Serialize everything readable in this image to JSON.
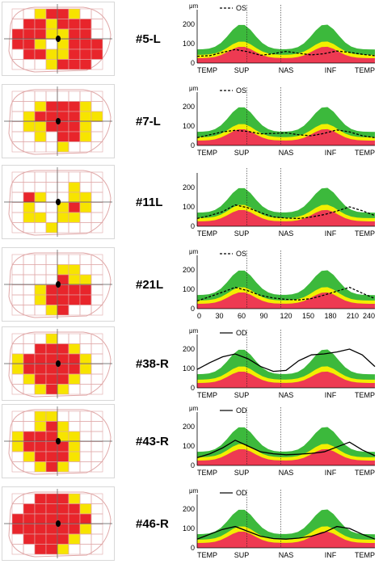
{
  "colors": {
    "green": "#3cb93c",
    "yellow": "#f2ef00",
    "red": "#ee3a52",
    "vf_red": "#e8252b",
    "vf_yellow": "#f7e400",
    "grid": "#e0a8a8"
  },
  "rows": [
    {
      "label": "#5-L",
      "unit": "μm",
      "legend": {
        "name": "OS",
        "style": "dashed"
      },
      "yticks": [
        "200",
        "100",
        "0"
      ],
      "xlabels": [
        "TEMP",
        "SUP",
        "NAS",
        "INF",
        "TEMP"
      ],
      "series": [
        35,
        38,
        55,
        70,
        58,
        40,
        48,
        60,
        50,
        42,
        48,
        62,
        55,
        45,
        38
      ],
      "vf": {
        "red": [
          [
            0,
            3
          ],
          [
            0,
            4
          ],
          [
            1,
            1
          ],
          [
            1,
            2
          ],
          [
            1,
            4
          ],
          [
            1,
            5
          ],
          [
            1,
            6
          ],
          [
            2,
            0
          ],
          [
            2,
            1
          ],
          [
            2,
            2
          ],
          [
            2,
            5
          ],
          [
            2,
            6
          ],
          [
            3,
            0
          ],
          [
            3,
            1
          ],
          [
            3,
            5
          ],
          [
            3,
            6
          ],
          [
            3,
            7
          ],
          [
            4,
            1
          ],
          [
            4,
            2
          ],
          [
            4,
            5
          ],
          [
            4,
            6
          ],
          [
            4,
            7
          ],
          [
            5,
            4
          ],
          [
            5,
            5
          ],
          [
            5,
            6
          ]
        ],
        "yellow": [
          [
            0,
            2
          ],
          [
            0,
            5
          ],
          [
            1,
            3
          ],
          [
            2,
            3
          ],
          [
            2,
            4
          ],
          [
            3,
            2
          ],
          [
            3,
            4
          ],
          [
            4,
            3
          ],
          [
            4,
            4
          ],
          [
            5,
            3
          ]
        ]
      }
    },
    {
      "label": "#7-L",
      "unit": "μm",
      "legend": {
        "name": "OS",
        "style": "dashed"
      },
      "yticks": [
        "200",
        "100",
        "0"
      ],
      "xlabels": [
        "TEMP",
        "SUP",
        "NAS",
        "INF",
        "TEMP"
      ],
      "series": [
        40,
        55,
        70,
        78,
        72,
        60,
        62,
        65,
        55,
        50,
        62,
        80,
        70,
        50,
        40
      ],
      "vf": {
        "red": [
          [
            1,
            3
          ],
          [
            1,
            4
          ],
          [
            1,
            5
          ],
          [
            2,
            2
          ],
          [
            2,
            3
          ],
          [
            2,
            4
          ],
          [
            2,
            5
          ],
          [
            3,
            3
          ],
          [
            3,
            4
          ],
          [
            3,
            5
          ],
          [
            4,
            4
          ],
          [
            4,
            5
          ]
        ],
        "yellow": [
          [
            1,
            2
          ],
          [
            1,
            6
          ],
          [
            2,
            1
          ],
          [
            2,
            6
          ],
          [
            2,
            7
          ],
          [
            3,
            1
          ],
          [
            3,
            2
          ],
          [
            3,
            6
          ],
          [
            4,
            2
          ],
          [
            4,
            6
          ],
          [
            5,
            4
          ]
        ]
      }
    },
    {
      "label": "#11L",
      "unit": "",
      "legend": {
        "name": "",
        "style": "dashed"
      },
      "yticks": [
        "200",
        "100",
        "0"
      ],
      "xlabels": [
        "TEMP",
        "SUP",
        "NAS",
        "INF",
        "TEMP"
      ],
      "series": [
        40,
        55,
        75,
        110,
        95,
        70,
        48,
        42,
        40,
        48,
        60,
        78,
        100,
        80,
        55
      ],
      "vf": {
        "red": [
          [
            2,
            1
          ],
          [
            3,
            5
          ]
        ],
        "yellow": [
          [
            1,
            5
          ],
          [
            2,
            2
          ],
          [
            2,
            5
          ],
          [
            2,
            6
          ],
          [
            3,
            1
          ],
          [
            3,
            4
          ],
          [
            3,
            6
          ],
          [
            4,
            1
          ],
          [
            4,
            2
          ],
          [
            4,
            4
          ],
          [
            4,
            5
          ],
          [
            5,
            3
          ]
        ]
      }
    },
    {
      "label": "#21L",
      "unit": "μm",
      "legend": {
        "name": "OS",
        "style": "dashed"
      },
      "yticks": [
        "200",
        "100",
        "0"
      ],
      "xlabels": [
        "0",
        "30",
        "60",
        "90",
        "120",
        "150",
        "180",
        "210",
        "240"
      ],
      "series": [
        40,
        62,
        85,
        110,
        92,
        68,
        55,
        48,
        45,
        52,
        70,
        90,
        110,
        80,
        52
      ],
      "vf": {
        "red": [
          [
            2,
            4
          ],
          [
            3,
            3
          ],
          [
            3,
            4
          ],
          [
            3,
            5
          ],
          [
            3,
            6
          ],
          [
            4,
            3
          ],
          [
            4,
            4
          ],
          [
            4,
            5
          ],
          [
            4,
            6
          ],
          [
            5,
            4
          ]
        ],
        "yellow": [
          [
            1,
            4
          ],
          [
            1,
            5
          ],
          [
            2,
            5
          ],
          [
            2,
            6
          ],
          [
            3,
            2
          ],
          [
            4,
            2
          ],
          [
            5,
            3
          ]
        ]
      }
    },
    {
      "label": "#38-R",
      "unit": "μm",
      "legend": {
        "name": "OD",
        "style": "solid"
      },
      "yticks": [
        "200",
        "100",
        "0"
      ],
      "xlabels": [
        "TEMP",
        "SUP",
        "NAS",
        "INF",
        "TEMP"
      ],
      "series": [
        95,
        130,
        160,
        175,
        150,
        110,
        85,
        90,
        140,
        170,
        175,
        185,
        200,
        170,
        110
      ],
      "vf": {
        "red": [
          [
            1,
            2
          ],
          [
            1,
            3
          ],
          [
            1,
            4
          ],
          [
            2,
            1
          ],
          [
            2,
            2
          ],
          [
            2,
            3
          ],
          [
            2,
            4
          ],
          [
            2,
            5
          ],
          [
            3,
            1
          ],
          [
            3,
            2
          ],
          [
            3,
            3
          ],
          [
            3,
            4
          ],
          [
            3,
            5
          ],
          [
            4,
            2
          ],
          [
            4,
            3
          ],
          [
            4,
            4
          ],
          [
            5,
            3
          ]
        ],
        "yellow": [
          [
            0,
            3
          ],
          [
            1,
            5
          ],
          [
            2,
            0
          ],
          [
            2,
            6
          ],
          [
            3,
            0
          ],
          [
            3,
            6
          ],
          [
            4,
            1
          ],
          [
            4,
            5
          ],
          [
            5,
            2
          ],
          [
            5,
            4
          ]
        ]
      }
    },
    {
      "label": "#43-R",
      "unit": "μm",
      "legend": {
        "name": "OD",
        "style": "solid"
      },
      "yticks": [
        "200",
        "100",
        "0"
      ],
      "xlabels": [
        "TEMP",
        "SUP",
        "NAS",
        "INF",
        "TEMP"
      ],
      "series": [
        40,
        60,
        90,
        130,
        100,
        70,
        60,
        55,
        58,
        62,
        70,
        95,
        120,
        80,
        50
      ],
      "vf": {
        "red": [
          [
            1,
            3
          ],
          [
            2,
            1
          ],
          [
            2,
            2
          ],
          [
            2,
            3
          ],
          [
            3,
            1
          ],
          [
            3,
            2
          ],
          [
            3,
            3
          ],
          [
            3,
            4
          ],
          [
            4,
            2
          ],
          [
            4,
            3
          ],
          [
            4,
            4
          ],
          [
            5,
            3
          ]
        ],
        "yellow": [
          [
            0,
            2
          ],
          [
            0,
            3
          ],
          [
            1,
            2
          ],
          [
            1,
            4
          ],
          [
            2,
            0
          ],
          [
            2,
            4
          ],
          [
            2,
            5
          ],
          [
            3,
            0
          ],
          [
            3,
            5
          ],
          [
            4,
            1
          ],
          [
            4,
            5
          ],
          [
            5,
            2
          ],
          [
            5,
            4
          ]
        ]
      }
    },
    {
      "label": "#46-R",
      "unit": "μm",
      "legend": {
        "name": "OD",
        "style": "solid"
      },
      "yticks": [
        "200",
        "100",
        "0"
      ],
      "xlabels": [
        "TEMP",
        "SUP",
        "NAS",
        "INF",
        "TEMP"
      ],
      "series": [
        45,
        70,
        95,
        110,
        85,
        60,
        48,
        45,
        50,
        60,
        80,
        110,
        100,
        70,
        45
      ],
      "vf": {
        "red": [
          [
            0,
            2
          ],
          [
            0,
            3
          ],
          [
            0,
            4
          ],
          [
            1,
            1
          ],
          [
            1,
            2
          ],
          [
            1,
            3
          ],
          [
            1,
            4
          ],
          [
            1,
            5
          ],
          [
            2,
            0
          ],
          [
            2,
            1
          ],
          [
            2,
            2
          ],
          [
            2,
            3
          ],
          [
            2,
            4
          ],
          [
            2,
            5
          ],
          [
            2,
            6
          ],
          [
            3,
            0
          ],
          [
            3,
            1
          ],
          [
            3,
            2
          ],
          [
            3,
            3
          ],
          [
            3,
            4
          ],
          [
            3,
            5
          ],
          [
            4,
            1
          ],
          [
            4,
            2
          ],
          [
            4,
            3
          ],
          [
            4,
            4
          ],
          [
            5,
            2
          ],
          [
            5,
            3
          ]
        ],
        "yellow": [
          [
            0,
            5
          ],
          [
            1,
            6
          ],
          [
            3,
            6
          ],
          [
            4,
            5
          ],
          [
            5,
            4
          ]
        ]
      }
    }
  ]
}
